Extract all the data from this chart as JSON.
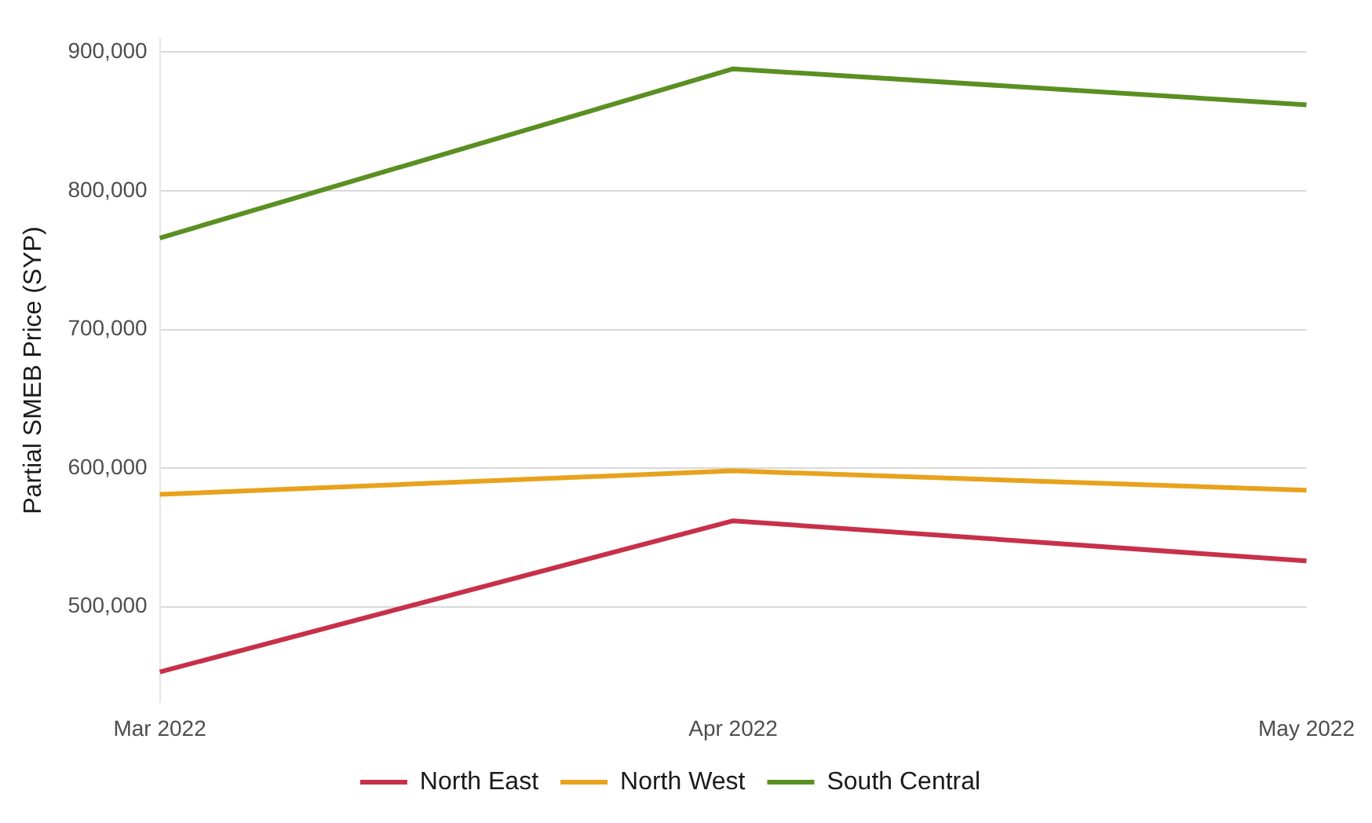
{
  "chart_data": {
    "type": "line",
    "ylabel": "Partial SMEB Price (SYP)",
    "categories": [
      "Mar 2022",
      "Apr 2022",
      "May 2022"
    ],
    "series": [
      {
        "name": "North East",
        "color": "#c8304a",
        "values": [
          453000,
          562000,
          533000
        ]
      },
      {
        "name": "North West",
        "color": "#e8a21c",
        "values": [
          581000,
          598000,
          584000
        ]
      },
      {
        "name": "South Central",
        "color": "#5a8f22",
        "values": [
          766000,
          888000,
          862000
        ]
      }
    ],
    "ylim": [
      431000,
      910000
    ],
    "yticks": [
      {
        "value": 500000,
        "label": "500,000"
      },
      {
        "value": 600000,
        "label": "600,000"
      },
      {
        "value": 700000,
        "label": "700,000"
      },
      {
        "value": 800000,
        "label": "800,000"
      },
      {
        "value": 900000,
        "label": "900,000"
      }
    ],
    "grid": "y",
    "legend": "bottom",
    "marker": "none",
    "line_style": "solid"
  }
}
